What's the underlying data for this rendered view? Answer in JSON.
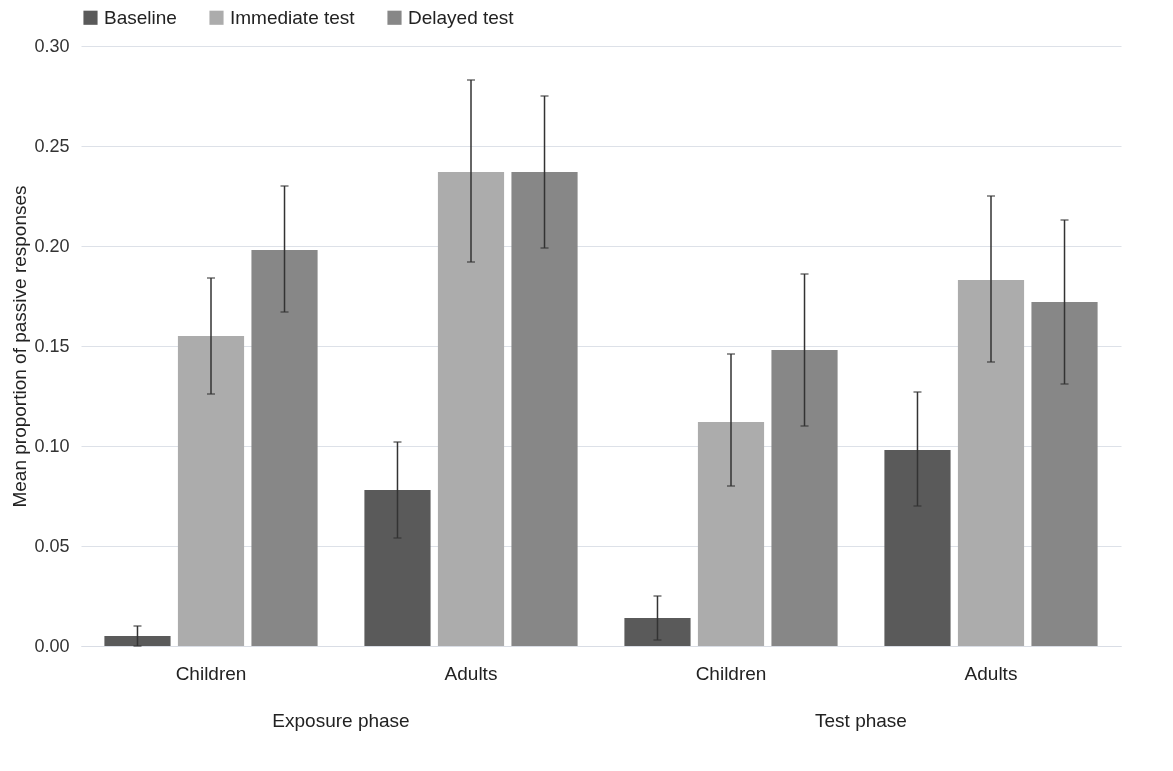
{
  "chart_data": {
    "type": "bar",
    "ylabel": "Mean proportion of passive responses",
    "categories": [
      "Children",
      "Adults",
      "Children",
      "Adults"
    ],
    "series": [
      {
        "name": "Baseline",
        "color": "#5a5a5a",
        "values": [
          0.005,
          0.078,
          0.014,
          0.098
        ],
        "errors": [
          [
            0.0,
            0.01
          ],
          [
            0.054,
            0.102
          ],
          [
            0.003,
            0.025
          ],
          [
            0.07,
            0.127
          ]
        ]
      },
      {
        "name": "Immediate test",
        "color": "#acacac",
        "values": [
          0.155,
          0.237,
          0.112,
          0.183
        ],
        "errors": [
          [
            0.126,
            0.184
          ],
          [
            0.192,
            0.283
          ],
          [
            0.08,
            0.146
          ],
          [
            0.142,
            0.225
          ]
        ]
      },
      {
        "name": "Delayed test",
        "color": "#878787",
        "values": [
          0.198,
          0.237,
          0.148,
          0.172
        ],
        "errors": [
          [
            0.167,
            0.23
          ],
          [
            0.199,
            0.275
          ],
          [
            0.11,
            0.186
          ],
          [
            0.131,
            0.213
          ]
        ]
      }
    ],
    "annotations": [
      "Exposure phase",
      "Test phase"
    ],
    "ylim": [
      0,
      0.3
    ],
    "yticks": [
      {
        "value": 0,
        "label": "0.00"
      },
      {
        "value": 0.05,
        "label": "0.05"
      },
      {
        "value": 0.1,
        "label": "0.10"
      },
      {
        "value": 0.15,
        "label": "0.15"
      },
      {
        "value": 0.2,
        "label": "0.20"
      },
      {
        "value": 0.25,
        "label": "0.25"
      },
      {
        "value": 0.3,
        "label": "0.30"
      }
    ],
    "grid": "y",
    "legend": "top"
  }
}
